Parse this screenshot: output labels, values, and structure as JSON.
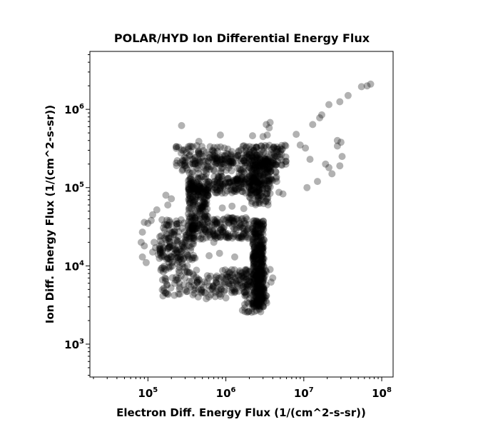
{
  "chart_data": {
    "type": "scatter",
    "title": "POLAR/HYD  Ion Differential Energy Flux",
    "xlabel": "Electron Diff. Energy Flux (1/(cm^2-s-sr))",
    "ylabel": "Ion Diff. Energy Flux (1/(cm^2-s-sr))",
    "xscale": "log",
    "yscale": "log",
    "xlim": [
      18000,
      140000000
    ],
    "ylim": [
      380,
      5500000
    ],
    "xticks": [
      {
        "base": "10",
        "exp": "5",
        "value": 100000
      },
      {
        "base": "10",
        "exp": "6",
        "value": 1000000
      },
      {
        "base": "10",
        "exp": "7",
        "value": 10000000
      },
      {
        "base": "10",
        "exp": "8",
        "value": 100000000
      }
    ],
    "yticks": [
      {
        "base": "10",
        "exp": "3",
        "value": 1000
      },
      {
        "base": "10",
        "exp": "4",
        "value": 10000
      },
      {
        "base": "10",
        "exp": "5",
        "value": 100000
      },
      {
        "base": "10",
        "exp": "6",
        "value": 1000000
      }
    ],
    "grid": false,
    "marker_color": "#000000",
    "marker_opacity": 0.3,
    "points": [
      [
        65000000,
        2000000
      ],
      [
        72000000,
        2100000
      ],
      [
        55000000,
        1950000
      ],
      [
        37000000,
        1500000
      ],
      [
        29000000,
        1250000
      ],
      [
        21000000,
        1150000
      ],
      [
        17000000,
        850000
      ],
      [
        16000000,
        780000
      ],
      [
        13000000,
        640000
      ],
      [
        3700000,
        680000
      ],
      [
        3300000,
        640000
      ],
      [
        3600000,
        580000
      ],
      [
        3400000,
        470000
      ],
      [
        3000000,
        450000
      ],
      [
        270000,
        620000
      ],
      [
        850000,
        470000
      ],
      [
        2200000,
        460000
      ],
      [
        450000,
        390000
      ],
      [
        27000000,
        400000
      ],
      [
        30000000,
        380000
      ],
      [
        31000000,
        250000
      ],
      [
        27000000,
        340000
      ],
      [
        9000000,
        350000
      ],
      [
        10500000,
        320000
      ],
      [
        8000000,
        480000
      ],
      [
        12000000,
        230000
      ],
      [
        21000000,
        180000
      ],
      [
        19000000,
        200000
      ],
      [
        29000000,
        190000
      ],
      [
        23000000,
        150000
      ],
      [
        15000000,
        120000
      ],
      [
        11000000,
        100000
      ],
      [
        4800000,
        87000
      ],
      [
        5400000,
        83000
      ],
      [
        4500000,
        120000
      ],
      [
        1200000,
        58000
      ],
      [
        1700000,
        54000
      ],
      [
        900000,
        55000
      ],
      [
        1500000,
        31000
      ],
      [
        250000,
        35000
      ],
      [
        200000,
        34000
      ],
      [
        85000,
        27000
      ],
      [
        90000,
        36000
      ],
      [
        100000,
        35000
      ],
      [
        170000,
        80000
      ],
      [
        200000,
        72000
      ],
      [
        130000,
        52000
      ],
      [
        115000,
        45000
      ],
      [
        110000,
        38000
      ],
      [
        120000,
        20000
      ],
      [
        125000,
        17000
      ],
      [
        95000,
        11000
      ],
      [
        85000,
        13000
      ],
      [
        82000,
        20000
      ],
      [
        90000,
        18000
      ],
      [
        115000,
        15000
      ],
      [
        180000,
        60000
      ],
      [
        4000000,
        7000
      ],
      [
        3800000,
        6200
      ],
      [
        3700000,
        9000
      ],
      [
        380000,
        7800
      ],
      [
        420000,
        8800
      ],
      [
        520000,
        4600
      ],
      [
        560000,
        3800
      ],
      [
        490000,
        5800
      ],
      [
        610000,
        13500
      ],
      [
        700000,
        20000
      ],
      [
        830000,
        14500
      ],
      [
        1300000,
        13000
      ],
      [
        1100000,
        8000
      ],
      [
        1300000,
        4800
      ],
      [
        1000000,
        3900
      ]
    ],
    "clusters": [
      {
        "x_range": [
          230000,
          6000000
        ],
        "y_range": [
          190000,
          350000
        ],
        "n": 220
      },
      {
        "x_range": [
          260000,
          1500000
        ],
        "y_range": [
          150000,
          260000
        ],
        "n": 70
      },
      {
        "x_range": [
          330000,
          2800000
        ],
        "y_range": [
          85000,
          140000
        ],
        "n": 230
      },
      {
        "x_range": [
          1500000,
          4500000
        ],
        "y_range": [
          110000,
          260000
        ],
        "n": 70
      },
      {
        "x_range": [
          330000,
          600000
        ],
        "y_range": [
          22000,
          100000
        ],
        "n": 190
      },
      {
        "x_range": [
          2000000,
          3800000
        ],
        "y_range": [
          60000,
          240000
        ],
        "n": 160
      },
      {
        "x_range": [
          600000,
          2000000
        ],
        "y_range": [
          22000,
          42000
        ],
        "n": 120
      },
      {
        "x_range": [
          2200000,
          3100000
        ],
        "y_range": [
          3000,
          38000
        ],
        "n": 350
      },
      {
        "x_range": [
          1600000,
          3400000
        ],
        "y_range": [
          2500,
          9000
        ],
        "n": 90
      },
      {
        "x_range": [
          140000,
          420000
        ],
        "y_range": [
          12000,
          40000
        ],
        "n": 120
      },
      {
        "x_range": [
          150000,
          900000
        ],
        "y_range": [
          4000,
          7500
        ],
        "n": 90
      },
      {
        "x_range": [
          900000,
          2000000
        ],
        "y_range": [
          4500,
          9000
        ],
        "n": 70
      },
      {
        "x_range": [
          130000,
          350000
        ],
        "y_range": [
          8000,
          18000
        ],
        "n": 60
      }
    ]
  }
}
